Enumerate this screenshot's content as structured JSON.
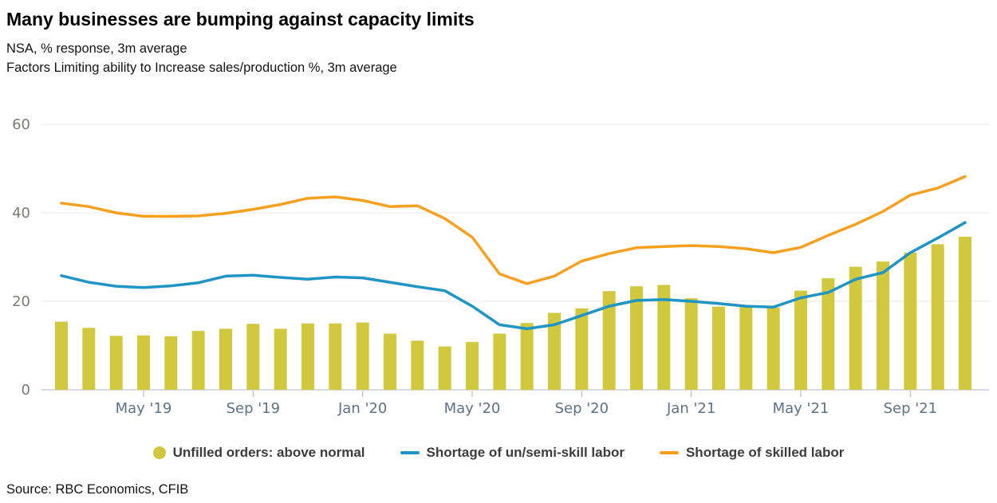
{
  "header": {
    "title": "Many businesses are bumping against capacity limits",
    "subtitle_line1": "NSA, % response, 3m average",
    "subtitle_line2": "Factors Limiting ability to Increase sales/production %, 3m average"
  },
  "source": "Source: RBC Economics, CFIB",
  "colors": {
    "bar": "#d2c83e",
    "line_blue": "#1e95c5",
    "line_orange": "#f7a01f",
    "grid": "#e9e9e9",
    "axis_line": "#c8d1de",
    "tick": "#b8c3d2",
    "y_label": "#7e7a75",
    "x_label": "#5d7187",
    "legend_text": "#3c3c3c"
  },
  "chart_data": {
    "type": "bar+line combo",
    "title": "Many businesses are bumping against capacity limits",
    "subtitle": "NSA, % response, 3m average — Factors Limiting ability to Increase sales/production %, 3m average",
    "categories": [
      "Feb '19",
      "Mar '19",
      "Apr '19",
      "May '19",
      "Jun '19",
      "Jul '19",
      "Aug '19",
      "Sep '19",
      "Oct '19",
      "Nov '19",
      "Dec '19",
      "Jan '20",
      "Feb '20",
      "Mar '20",
      "Apr '20",
      "May '20",
      "Jun '20",
      "Jul '20",
      "Aug '20",
      "Sep '20",
      "Oct '20",
      "Nov '20",
      "Dec '20",
      "Jan '21",
      "Feb '21",
      "Mar '21",
      "Apr '21",
      "May '21",
      "Jun '21",
      "Jul '21",
      "Aug '21",
      "Sep '21",
      "Oct '21",
      "Nov '21"
    ],
    "series": [
      {
        "name": "Unfilled orders: above normal",
        "type": "bar",
        "color": "#d2c83e",
        "values": [
          15.4,
          14.0,
          12.2,
          12.3,
          12.1,
          13.3,
          13.8,
          14.9,
          13.8,
          15.0,
          15.0,
          15.2,
          12.7,
          11.1,
          9.8,
          10.8,
          12.7,
          15.1,
          17.4,
          18.4,
          22.3,
          23.4,
          23.7,
          20.7,
          18.8,
          18.8,
          18.6,
          22.4,
          25.2,
          27.8,
          29.0,
          31.0,
          32.9,
          34.6
        ]
      },
      {
        "name": "Shortage of un/semi-skill labor",
        "type": "line",
        "color": "#1e95c5",
        "values": [
          25.8,
          24.3,
          23.4,
          23.1,
          23.5,
          24.2,
          25.7,
          25.9,
          25.4,
          25.0,
          25.5,
          25.3,
          24.3,
          23.3,
          22.4,
          18.9,
          14.7,
          13.8,
          14.7,
          16.8,
          18.9,
          20.2,
          20.4,
          20.0,
          19.5,
          18.9,
          18.7,
          20.8,
          22.0,
          25.0,
          26.5,
          31.0,
          34.3,
          37.8
        ]
      },
      {
        "name": "Shortage of skilled labor",
        "type": "line",
        "color": "#f7a01f",
        "values": [
          42.2,
          41.4,
          40.0,
          39.2,
          39.2,
          39.3,
          39.9,
          40.8,
          41.9,
          43.3,
          43.6,
          42.8,
          41.4,
          41.6,
          38.7,
          34.5,
          26.2,
          24.0,
          25.7,
          29.1,
          30.8,
          32.1,
          32.4,
          32.6,
          32.4,
          31.9,
          31.0,
          32.2,
          34.9,
          37.4,
          40.3,
          44.0,
          45.6,
          48.2
        ]
      }
    ],
    "ylim": [
      0,
      62
    ],
    "yticks": [
      0,
      20,
      40,
      60
    ],
    "xtick_labels": [
      "May '19",
      "Sep '19",
      "Jan '20",
      "May '20",
      "Sep '20",
      "Jan '21",
      "May '21",
      "Sep '21"
    ],
    "xtick_start_index": 3,
    "xtick_every": 4,
    "grid": true,
    "legend_position": "bottom-center"
  },
  "legend": {
    "items": [
      {
        "label": "Unfilled orders: above normal",
        "marker": "circle",
        "color": "#d2c83e"
      },
      {
        "label": "Shortage of un/semi-skill labor",
        "marker": "line",
        "color": "#1e95c5"
      },
      {
        "label": "Shortage of skilled labor",
        "marker": "line",
        "color": "#f7a01f"
      }
    ]
  }
}
